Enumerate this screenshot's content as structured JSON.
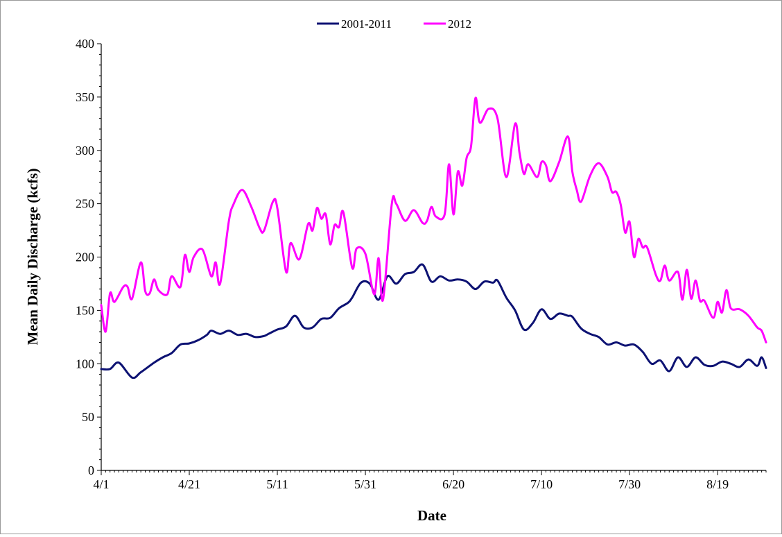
{
  "chart_data": {
    "type": "line",
    "title": "",
    "xlabel": "Date",
    "ylabel": "Mean Daily Discharge (kcfs)",
    "ylim": [
      0,
      400
    ],
    "yticks": [
      0,
      50,
      100,
      150,
      200,
      250,
      300,
      350,
      400
    ],
    "xlim": [
      "4/1",
      "8/30"
    ],
    "xticks": [
      "4/1",
      "4/21",
      "5/11",
      "5/31",
      "6/20",
      "7/10",
      "7/30",
      "8/19"
    ],
    "grid": false,
    "legend_position": "top-center",
    "series": [
      {
        "name": "2001-2011",
        "color": "#0d1273",
        "points": [
          [
            "4/1",
            95
          ],
          [
            "4/3",
            95
          ],
          [
            "4/5",
            101
          ],
          [
            "4/8",
            87
          ],
          [
            "4/10",
            92
          ],
          [
            "4/13",
            101
          ],
          [
            "4/15",
            106
          ],
          [
            "4/17",
            110
          ],
          [
            "4/19",
            118
          ],
          [
            "4/21",
            119
          ],
          [
            "4/23",
            122
          ],
          [
            "4/25",
            127
          ],
          [
            "4/26",
            131
          ],
          [
            "4/28",
            128
          ],
          [
            "4/30",
            131
          ],
          [
            "5/2",
            127
          ],
          [
            "5/4",
            128
          ],
          [
            "5/6",
            125
          ],
          [
            "5/8",
            126
          ],
          [
            "5/9",
            128
          ],
          [
            "5/11",
            132
          ],
          [
            "5/13",
            135
          ],
          [
            "5/15",
            145
          ],
          [
            "5/17",
            134
          ],
          [
            "5/19",
            134
          ],
          [
            "5/21",
            142
          ],
          [
            "5/23",
            143
          ],
          [
            "5/25",
            152
          ],
          [
            "5/27",
            157
          ],
          [
            "5/28",
            162
          ],
          [
            "5/30",
            176
          ],
          [
            "6/1",
            175
          ],
          [
            "6/3",
            160
          ],
          [
            "6/5",
            182
          ],
          [
            "6/7",
            175
          ],
          [
            "6/9",
            184
          ],
          [
            "6/11",
            186
          ],
          [
            "6/13",
            193
          ],
          [
            "6/15",
            177
          ],
          [
            "6/17",
            182
          ],
          [
            "6/19",
            178
          ],
          [
            "6/21",
            179
          ],
          [
            "6/23",
            177
          ],
          [
            "6/25",
            170
          ],
          [
            "6/27",
            177
          ],
          [
            "6/29",
            176
          ],
          [
            "6/30",
            178
          ],
          [
            "7/2",
            162
          ],
          [
            "7/4",
            150
          ],
          [
            "7/6",
            132
          ],
          [
            "7/8",
            138
          ],
          [
            "7/10",
            151
          ],
          [
            "7/12",
            142
          ],
          [
            "7/14",
            147
          ],
          [
            "7/16",
            145
          ],
          [
            "7/17",
            144
          ],
          [
            "7/19",
            133
          ],
          [
            "7/21",
            128
          ],
          [
            "7/23",
            125
          ],
          [
            "7/25",
            118
          ],
          [
            "7/27",
            120
          ],
          [
            "7/29",
            117
          ],
          [
            "7/31",
            118
          ],
          [
            "8/2",
            111
          ],
          [
            "8/4",
            100
          ],
          [
            "8/6",
            103
          ],
          [
            "8/8",
            93
          ],
          [
            "8/10",
            106
          ],
          [
            "8/12",
            97
          ],
          [
            "8/14",
            106
          ],
          [
            "8/16",
            99
          ],
          [
            "8/18",
            98
          ],
          [
            "8/20",
            102
          ],
          [
            "8/22",
            100
          ],
          [
            "8/24",
            97
          ],
          [
            "8/26",
            104
          ],
          [
            "8/28",
            98
          ],
          [
            "8/29",
            106
          ],
          [
            "8/30",
            96
          ]
        ]
      },
      {
        "name": "2012",
        "color": "#ff00ff",
        "points": [
          [
            "4/1",
            155
          ],
          [
            "4/2",
            130
          ],
          [
            "4/3",
            166
          ],
          [
            "4/4",
            158
          ],
          [
            "4/6",
            172
          ],
          [
            "4/7",
            172
          ],
          [
            "4/8",
            161
          ],
          [
            "4/10",
            195
          ],
          [
            "4/11",
            168
          ],
          [
            "4/12",
            166
          ],
          [
            "4/13",
            179
          ],
          [
            "4/14",
            169
          ],
          [
            "4/16",
            165
          ],
          [
            "4/17",
            182
          ],
          [
            "4/19",
            172
          ],
          [
            "4/20",
            202
          ],
          [
            "4/21",
            186
          ],
          [
            "4/22",
            200
          ],
          [
            "4/24",
            207
          ],
          [
            "4/26",
            182
          ],
          [
            "4/27",
            195
          ],
          [
            "4/28",
            175
          ],
          [
            "4/30",
            234
          ],
          [
            "5/1",
            249
          ],
          [
            "5/3",
            263
          ],
          [
            "5/5",
            248
          ],
          [
            "5/7",
            227
          ],
          [
            "5/8",
            225
          ],
          [
            "5/10",
            252
          ],
          [
            "5/11",
            246
          ],
          [
            "5/13",
            186
          ],
          [
            "5/14",
            213
          ],
          [
            "5/16",
            198
          ],
          [
            "5/18",
            231
          ],
          [
            "5/19",
            225
          ],
          [
            "5/20",
            246
          ],
          [
            "5/21",
            236
          ],
          [
            "5/22",
            240
          ],
          [
            "5/23",
            212
          ],
          [
            "5/24",
            230
          ],
          [
            "5/25",
            228
          ],
          [
            "5/26",
            242
          ],
          [
            "5/28",
            190
          ],
          [
            "5/29",
            208
          ],
          [
            "5/31",
            203
          ],
          [
            "6/2",
            165
          ],
          [
            "6/3",
            199
          ],
          [
            "6/4",
            160
          ],
          [
            "6/6",
            250
          ],
          [
            "6/7",
            250
          ],
          [
            "6/9",
            234
          ],
          [
            "6/11",
            244
          ],
          [
            "6/13",
            232
          ],
          [
            "6/14",
            234
          ],
          [
            "6/15",
            247
          ],
          [
            "6/16",
            238
          ],
          [
            "6/18",
            240
          ],
          [
            "6/19",
            287
          ],
          [
            "6/20",
            240
          ],
          [
            "6/21",
            280
          ],
          [
            "6/22",
            267
          ],
          [
            "6/23",
            293
          ],
          [
            "6/24",
            304
          ],
          [
            "6/25",
            349
          ],
          [
            "6/26",
            326
          ],
          [
            "6/28",
            339
          ],
          [
            "6/30",
            330
          ],
          [
            "7/2",
            275
          ],
          [
            "7/4",
            325
          ],
          [
            "7/5",
            298
          ],
          [
            "7/6",
            278
          ],
          [
            "7/7",
            287
          ],
          [
            "7/9",
            275
          ],
          [
            "7/10",
            289
          ],
          [
            "7/11",
            286
          ],
          [
            "7/12",
            271
          ],
          [
            "7/14",
            289
          ],
          [
            "7/16",
            313
          ],
          [
            "7/17",
            280
          ],
          [
            "7/18",
            263
          ],
          [
            "7/19",
            252
          ],
          [
            "7/21",
            276
          ],
          [
            "7/23",
            288
          ],
          [
            "7/25",
            275
          ],
          [
            "7/26",
            261
          ],
          [
            "7/27",
            261
          ],
          [
            "7/28",
            249
          ],
          [
            "7/29",
            223
          ],
          [
            "7/30",
            233
          ],
          [
            "7/31",
            200
          ],
          [
            "8/1",
            217
          ],
          [
            "8/2",
            209
          ],
          [
            "8/3",
            209
          ],
          [
            "8/5",
            183
          ],
          [
            "8/6",
            178
          ],
          [
            "8/7",
            192
          ],
          [
            "8/8",
            178
          ],
          [
            "8/10",
            186
          ],
          [
            "8/11",
            160
          ],
          [
            "8/12",
            188
          ],
          [
            "8/13",
            161
          ],
          [
            "8/14",
            178
          ],
          [
            "8/15",
            159
          ],
          [
            "8/16",
            159
          ],
          [
            "8/18",
            143
          ],
          [
            "8/19",
            158
          ],
          [
            "8/20",
            148
          ],
          [
            "8/21",
            169
          ],
          [
            "8/22",
            152
          ],
          [
            "8/24",
            151
          ],
          [
            "8/26",
            145
          ],
          [
            "8/28",
            134
          ],
          [
            "8/29",
            131
          ],
          [
            "8/30",
            120
          ]
        ]
      }
    ]
  }
}
